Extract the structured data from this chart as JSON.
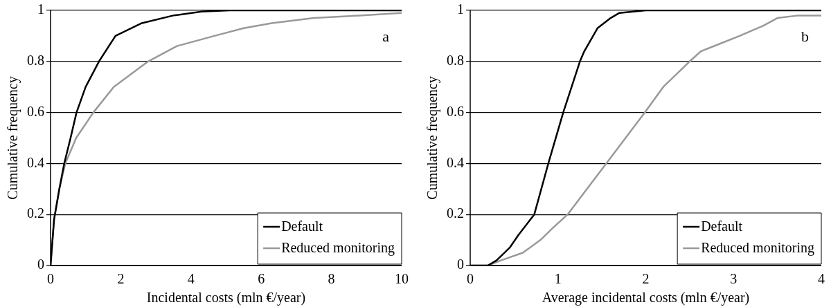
{
  "chart_data": [
    {
      "type": "line",
      "xlabel": "Incidental costs (mln €/year)",
      "ylabel": "Cumulative frequency",
      "annotations": [
        "a"
      ],
      "xlim": [
        0,
        10
      ],
      "xticks": [
        0,
        2,
        4,
        6,
        8,
        10
      ],
      "ylim": [
        0,
        1
      ],
      "yticks": [
        0,
        0.2,
        0.4,
        0.6,
        0.8,
        1
      ],
      "grid": "y",
      "legend": "bottom right",
      "marker": "none",
      "series": [
        {
          "name": "Default",
          "color": "#000000",
          "x": [
            0,
            0.1,
            0.25,
            0.39,
            0.57,
            0.74,
            1.0,
            1.38,
            1.85,
            2.6,
            3.5,
            4.3,
            5.1,
            10
          ],
          "values": [
            0,
            0.18,
            0.3,
            0.4,
            0.5,
            0.6,
            0.7,
            0.8,
            0.9,
            0.95,
            0.98,
            0.995,
            1,
            1
          ]
        },
        {
          "name": "Reduced monitoring",
          "color": "#999999",
          "x": [
            0,
            0.1,
            0.25,
            0.42,
            0.73,
            1.22,
            1.8,
            2.78,
            3.6,
            4.67,
            5.5,
            6.3,
            7.5,
            8.8,
            10
          ],
          "values": [
            0,
            0.18,
            0.3,
            0.4,
            0.5,
            0.6,
            0.7,
            0.8,
            0.86,
            0.9,
            0.93,
            0.95,
            0.97,
            0.98,
            0.99
          ]
        }
      ]
    },
    {
      "type": "line",
      "xlabel": "Average incidental costs (mln €/year)",
      "ylabel": "Cumulative frequency",
      "annotations": [
        "b"
      ],
      "xlim": [
        0,
        4
      ],
      "xticks": [
        0,
        1,
        2,
        3,
        4
      ],
      "ylim": [
        0,
        1
      ],
      "yticks": [
        0,
        0.2,
        0.4,
        0.6,
        0.8,
        1
      ],
      "grid": "y",
      "legend": "bottom right",
      "marker": "none",
      "series": [
        {
          "name": "Default",
          "color": "#000000",
          "x": [
            0,
            0.2,
            0.3,
            0.45,
            0.55,
            0.73,
            0.89,
            1.06,
            1.25,
            1.3,
            1.45,
            1.6,
            1.7,
            2.0,
            4
          ],
          "values": [
            0,
            0,
            0.02,
            0.07,
            0.12,
            0.2,
            0.4,
            0.6,
            0.8,
            0.84,
            0.93,
            0.97,
            0.99,
            1,
            1
          ]
        },
        {
          "name": "Reduced monitoring",
          "color": "#999999",
          "x": [
            0,
            0.2,
            0.35,
            0.6,
            0.8,
            0.95,
            1.11,
            1.33,
            1.55,
            1.77,
            1.99,
            2.2,
            2.5,
            2.63,
            2.85,
            3.07,
            3.34,
            3.5,
            3.74,
            4
          ],
          "values": [
            0,
            0,
            0.02,
            0.05,
            0.1,
            0.15,
            0.2,
            0.3,
            0.4,
            0.5,
            0.6,
            0.7,
            0.8,
            0.84,
            0.87,
            0.9,
            0.94,
            0.97,
            0.98,
            0.98
          ]
        }
      ]
    }
  ]
}
